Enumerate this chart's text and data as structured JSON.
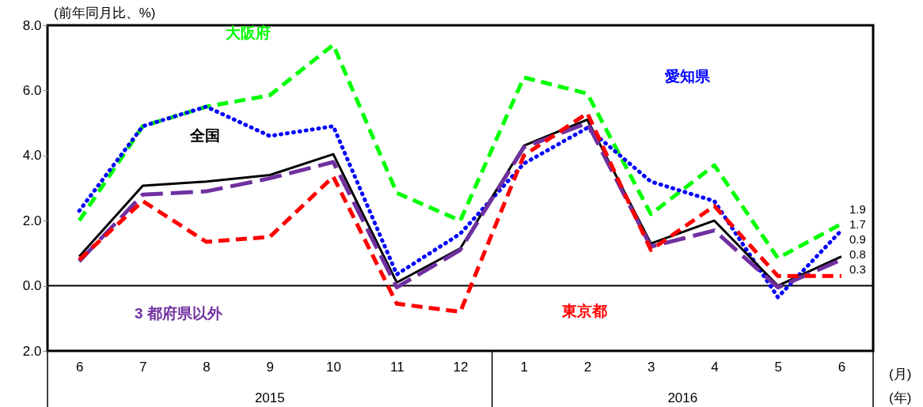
{
  "chart_data": {
    "type": "line",
    "ylabel": "(前年同月比、%)",
    "categories": [
      "6",
      "7",
      "8",
      "9",
      "10",
      "11",
      "12",
      "1",
      "2",
      "3",
      "4",
      "5",
      "6"
    ],
    "series": [
      {
        "name": "大阪府",
        "color": "#00ff00",
        "line_style": "dashed",
        "values": [
          2.0,
          4.9,
          5.5,
          5.85,
          7.4,
          2.85,
          2.0,
          6.4,
          5.9,
          2.2,
          3.7,
          0.85,
          1.9
        ],
        "value_labels": [
          null,
          null,
          null,
          null,
          null,
          null,
          null,
          null,
          null,
          null,
          null,
          null,
          "1.9"
        ]
      },
      {
        "name": "愛知県",
        "color": "#0000ff",
        "line_style": "dotted",
        "values": [
          2.3,
          4.9,
          5.5,
          4.6,
          4.9,
          0.35,
          1.6,
          3.75,
          4.85,
          3.2,
          2.6,
          -0.35,
          1.7
        ],
        "value_labels": [
          null,
          null,
          null,
          null,
          null,
          null,
          null,
          null,
          null,
          null,
          null,
          null,
          "1.7"
        ]
      },
      {
        "name": "全国",
        "color": "#000000",
        "line_style": "solid",
        "values": [
          0.9,
          3.07,
          3.2,
          3.4,
          4.04,
          0.1,
          1.15,
          4.3,
          5.1,
          1.3,
          2.0,
          0.0,
          0.9
        ],
        "value_labels": [
          null,
          null,
          null,
          null,
          null,
          null,
          null,
          null,
          null,
          null,
          null,
          null,
          "0.9"
        ]
      },
      {
        "name": "3 都府県以外",
        "color": "#7030a0",
        "line_style": "dashed",
        "values": [
          0.75,
          2.8,
          2.9,
          3.3,
          3.8,
          -0.05,
          1.1,
          4.25,
          5.0,
          1.2,
          1.7,
          -0.05,
          0.8
        ],
        "value_labels": [
          null,
          null,
          null,
          null,
          null,
          null,
          null,
          null,
          null,
          null,
          null,
          null,
          "0.8"
        ]
      },
      {
        "name": "東京都",
        "color": "#ff0000",
        "line_style": "dashed",
        "values": [
          0.8,
          2.6,
          1.35,
          1.5,
          3.35,
          -0.55,
          -0.8,
          4.0,
          5.3,
          1.1,
          2.45,
          0.3,
          0.3
        ],
        "value_labels": [
          null,
          null,
          null,
          null,
          null,
          null,
          null,
          null,
          null,
          null,
          null,
          null,
          "0.3"
        ]
      }
    ],
    "ylim": [
      -2,
      8
    ],
    "yticks": [
      {
        "value": -2,
        "label": "2.0"
      },
      {
        "value": 0,
        "label": "0.0"
      },
      {
        "value": 2,
        "label": "2.0"
      },
      {
        "value": 4,
        "label": "4.0"
      },
      {
        "value": 6,
        "label": "6.0"
      },
      {
        "value": 8,
        "label": "8.0"
      }
    ],
    "ref_lines": [
      {
        "axis": "y",
        "value": 0,
        "color": "#000000"
      }
    ],
    "annotations": [
      "2015",
      "2016",
      "(月)",
      "(年)"
    ],
    "grid": false,
    "legend": false,
    "marker": "none"
  }
}
